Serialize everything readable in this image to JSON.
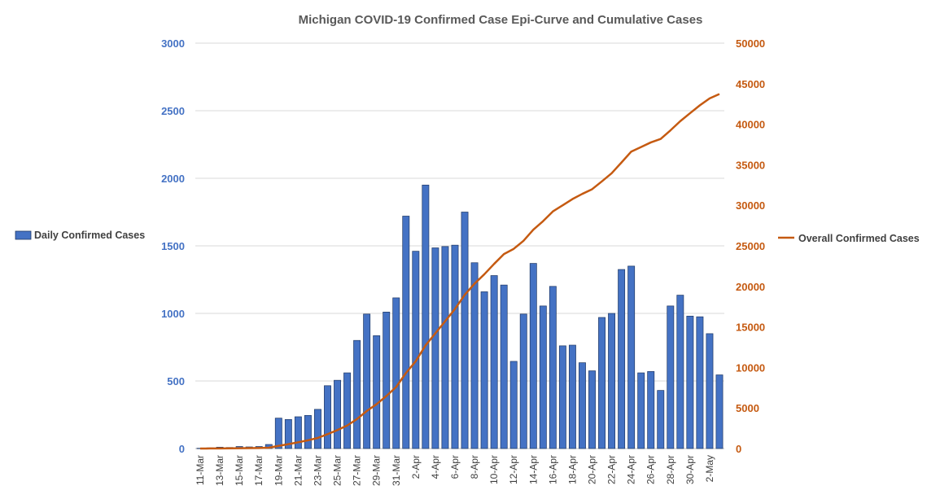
{
  "chart_data": {
    "type": "bar",
    "title": "Michigan COVID-19 Confirmed Case Epi-Curve and Cumulative Cases",
    "categories": [
      "11-Mar",
      "12-Mar",
      "13-Mar",
      "14-Mar",
      "15-Mar",
      "16-Mar",
      "17-Mar",
      "18-Mar",
      "19-Mar",
      "20-Mar",
      "21-Mar",
      "22-Mar",
      "23-Mar",
      "24-Mar",
      "25-Mar",
      "26-Mar",
      "27-Mar",
      "28-Mar",
      "29-Mar",
      "30-Mar",
      "31-Mar",
      "1-Apr",
      "2-Apr",
      "3-Apr",
      "4-Apr",
      "5-Apr",
      "6-Apr",
      "7-Apr",
      "8-Apr",
      "9-Apr",
      "10-Apr",
      "11-Apr",
      "12-Apr",
      "13-Apr",
      "14-Apr",
      "15-Apr",
      "16-Apr",
      "17-Apr",
      "18-Apr",
      "19-Apr",
      "20-Apr",
      "21-Apr",
      "22-Apr",
      "23-Apr",
      "24-Apr",
      "25-Apr",
      "26-Apr",
      "27-Apr",
      "28-Apr",
      "29-Apr",
      "30-Apr",
      "1-May",
      "2-May",
      "3-May"
    ],
    "x_tick_labels": [
      "11-Mar",
      "13-Mar",
      "15-Mar",
      "17-Mar",
      "19-Mar",
      "21-Mar",
      "23-Mar",
      "25-Mar",
      "27-Mar",
      "29-Mar",
      "31-Mar",
      "2-Apr",
      "4-Apr",
      "6-Apr",
      "8-Apr",
      "10-Apr",
      "12-Apr",
      "14-Apr",
      "16-Apr",
      "18-Apr",
      "20-Apr",
      "22-Apr",
      "24-Apr",
      "26-Apr",
      "28-Apr",
      "30-Apr",
      "2-May"
    ],
    "y_left": {
      "ylim": [
        0,
        3000
      ],
      "ticks": [
        "0",
        "500",
        "1000",
        "1500",
        "2000",
        "2500",
        "3000"
      ],
      "color": "#4472C4"
    },
    "y_right": {
      "ylim": [
        0,
        50000
      ],
      "ticks": [
        "0",
        "5000",
        "10000",
        "15000",
        "20000",
        "25000",
        "30000",
        "35000",
        "40000",
        "45000",
        "50000"
      ],
      "color": "#C55A11"
    },
    "grid": true,
    "series": [
      {
        "name": "Daily Confirmed Cases",
        "type": "bar",
        "axis": "left",
        "color": "#4472C4",
        "values": [
          2,
          5,
          10,
          8,
          15,
          12,
          15,
          30,
          225,
          215,
          235,
          245,
          290,
          465,
          505,
          560,
          800,
          995,
          835,
          1010,
          1115,
          1720,
          1460,
          1950,
          1485,
          1495,
          1505,
          1750,
          1375,
          1160,
          1280,
          1210,
          645,
          995,
          1370,
          1055,
          1200,
          760,
          765,
          635,
          575,
          970,
          1000,
          1325,
          1350,
          560,
          570,
          430,
          1055,
          1135,
          980,
          975,
          850,
          545
        ]
      },
      {
        "name": "Overall Confirmed Cases",
        "type": "line",
        "axis": "right",
        "color": "#C55A11",
        "values": [
          2,
          7,
          17,
          25,
          40,
          52,
          67,
          97,
          322,
          537,
          772,
          1017,
          1307,
          1772,
          2277,
          2837,
          3637,
          4632,
          5467,
          6477,
          7592,
          9312,
          10772,
          12722,
          14207,
          15702,
          17207,
          18957,
          20332,
          21492,
          22772,
          23982,
          24627,
          25622,
          26992,
          28047,
          29247,
          30007,
          30772,
          31407,
          31982,
          32952,
          33952,
          35277,
          36627,
          37187,
          37757,
          38187,
          39242,
          40377,
          41357,
          42332,
          43182,
          43727
        ]
      }
    ],
    "legend": {
      "left_entry": "Daily Confirmed Cases",
      "right_entry": "Overall Confirmed Cases"
    }
  }
}
